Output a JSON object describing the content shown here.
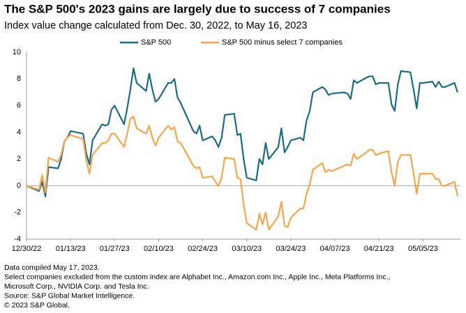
{
  "chart_data": {
    "type": "line",
    "title": "The S&P 500's 2023 gains are largely due to success of 7 companies",
    "subtitle": "Index value change calculated from Dec. 30, 2022, to May 16, 2023",
    "x": [
      "2022-12-30",
      "2023-01-03",
      "2023-01-04",
      "2023-01-05",
      "2023-01-06",
      "2023-01-09",
      "2023-01-10",
      "2023-01-11",
      "2023-01-12",
      "2023-01-13",
      "2023-01-17",
      "2023-01-18",
      "2023-01-19",
      "2023-01-20",
      "2023-01-23",
      "2023-01-24",
      "2023-01-25",
      "2023-01-26",
      "2023-01-27",
      "2023-01-30",
      "2023-01-31",
      "2023-02-01",
      "2023-02-02",
      "2023-02-03",
      "2023-02-06",
      "2023-02-07",
      "2023-02-08",
      "2023-02-09",
      "2023-02-10",
      "2023-02-13",
      "2023-02-14",
      "2023-02-15",
      "2023-02-16",
      "2023-02-17",
      "2023-02-21",
      "2023-02-22",
      "2023-02-23",
      "2023-02-24",
      "2023-02-27",
      "2023-02-28",
      "2023-03-01",
      "2023-03-02",
      "2023-03-03",
      "2023-03-06",
      "2023-03-07",
      "2023-03-08",
      "2023-03-09",
      "2023-03-10",
      "2023-03-13",
      "2023-03-14",
      "2023-03-15",
      "2023-03-16",
      "2023-03-17",
      "2023-03-20",
      "2023-03-21",
      "2023-03-22",
      "2023-03-23",
      "2023-03-24",
      "2023-03-27",
      "2023-03-28",
      "2023-03-29",
      "2023-03-30",
      "2023-03-31",
      "2023-04-03",
      "2023-04-04",
      "2023-04-05",
      "2023-04-06",
      "2023-04-10",
      "2023-04-11",
      "2023-04-12",
      "2023-04-13",
      "2023-04-14",
      "2023-04-17",
      "2023-04-18",
      "2023-04-19",
      "2023-04-20",
      "2023-04-21",
      "2023-04-24",
      "2023-04-25",
      "2023-04-26",
      "2023-04-27",
      "2023-04-28",
      "2023-05-01",
      "2023-05-02",
      "2023-05-03",
      "2023-05-04",
      "2023-05-05",
      "2023-05-08",
      "2023-05-09",
      "2023-05-10",
      "2023-05-11",
      "2023-05-12",
      "2023-05-15",
      "2023-05-16"
    ],
    "series": [
      {
        "name": "S&P 500",
        "color": "#1a6b85",
        "values": [
          0,
          -0.4,
          0.3,
          -0.8,
          1.4,
          1.3,
          2.0,
          3.3,
          3.6,
          4.1,
          3.9,
          2.4,
          1.6,
          3.4,
          4.6,
          4.5,
          4.6,
          5.7,
          6.0,
          4.6,
          5.8,
          7.2,
          8.8,
          7.7,
          7.1,
          8.4,
          7.2,
          6.3,
          6.5,
          7.7,
          7.7,
          8.0,
          6.6,
          6.2,
          4.1,
          3.9,
          4.5,
          3.4,
          3.7,
          3.4,
          2.9,
          3.6,
          5.3,
          5.4,
          3.8,
          3.9,
          2.0,
          0.6,
          0.4,
          2.0,
          1.6,
          3.2,
          2.0,
          2.9,
          4.3,
          2.5,
          2.9,
          3.4,
          3.6,
          3.4,
          4.9,
          5.6,
          7.0,
          7.4,
          7.2,
          6.8,
          6.9,
          7.0,
          6.9,
          6.5,
          7.9,
          7.7,
          8.1,
          8.2,
          8.2,
          7.6,
          7.7,
          7.7,
          6.1,
          5.6,
          7.6,
          8.6,
          8.5,
          7.2,
          5.8,
          7.7,
          7.7,
          7.8,
          7.4,
          7.8,
          7.4,
          7.4,
          7.7,
          7.0
        ]
      },
      {
        "name": "S&P 500 minus select 7 companies",
        "color": "#f5a54a",
        "values": [
          0,
          -0.3,
          0.8,
          -0.5,
          2.1,
          1.8,
          2.3,
          3.3,
          3.6,
          3.8,
          3.5,
          1.9,
          0.9,
          2.3,
          3.2,
          3.2,
          3.4,
          3.9,
          3.9,
          2.9,
          3.9,
          5.0,
          5.2,
          4.3,
          3.9,
          4.5,
          3.6,
          3.0,
          3.6,
          4.5,
          4.2,
          4.4,
          3.3,
          3.2,
          1.5,
          1.3,
          1.4,
          0.6,
          0.7,
          0.3,
          0.0,
          0.6,
          2.1,
          2.0,
          0.6,
          0.5,
          -1.4,
          -2.8,
          -3.3,
          -2.1,
          -2.9,
          -2.0,
          -3.3,
          -2.3,
          -1.2,
          -3.0,
          -3.1,
          -2.4,
          -1.7,
          -1.7,
          -0.6,
          0.1,
          1.2,
          1.7,
          1.0,
          1.2,
          1.1,
          1.5,
          1.6,
          1.5,
          2.4,
          2.0,
          2.5,
          2.7,
          2.7,
          2.3,
          2.4,
          2.6,
          1.0,
          0.0,
          1.8,
          2.3,
          2.3,
          0.9,
          -0.6,
          0.9,
          0.9,
          0.9,
          0.5,
          0.5,
          0.0,
          0.0,
          0.3,
          -0.8
        ]
      }
    ],
    "xlim": [
      "2022-12-30",
      "2023-05-16"
    ],
    "xticks": [
      {
        "value": "2022-12-30",
        "label": "12/30/22"
      },
      {
        "value": "2023-01-13",
        "label": "01/13/23"
      },
      {
        "value": "2023-01-27",
        "label": "01/27/23"
      },
      {
        "value": "2023-02-10",
        "label": "02/10/23"
      },
      {
        "value": "2023-02-24",
        "label": "02/24/23"
      },
      {
        "value": "2023-03-10",
        "label": "03/10/23"
      },
      {
        "value": "2023-03-24",
        "label": "03/24/23"
      },
      {
        "value": "2023-04-07",
        "label": "04/07/23"
      },
      {
        "value": "2023-04-21",
        "label": "04/21/23"
      },
      {
        "value": "2023-05-05",
        "label": "05/05/23"
      }
    ],
    "ylim": [
      -4,
      10
    ],
    "yticks": [
      -4,
      -2,
      0,
      2,
      4,
      6,
      8,
      10
    ],
    "grid": false,
    "legend": "top",
    "notes": [
      "Data compiled May 17, 2023.",
      "Select companies excluded from the custom index are Alphabet Inc., Amazon.com Inc., Apple Inc., Meta Platforms Inc.,",
      "Microsoft Corp., NVIDIA Corp. and Tesla Inc.",
      "Source: S&P Global Market Intelligence.",
      "© 2023 S&P Global."
    ]
  }
}
